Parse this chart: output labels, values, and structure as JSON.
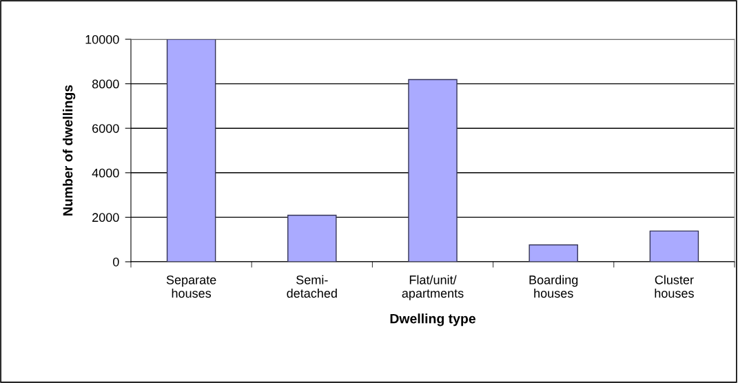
{
  "chart_data": {
    "type": "bar",
    "xlabel": "Dwelling type",
    "ylabel": "Number of dwellings",
    "categories": [
      "Separate\nhouses",
      "Semi-\ndetached",
      "Flat/unit/\napartments",
      "Boarding\nhouses",
      "Cluster\nhouses"
    ],
    "values": [
      10000,
      2090,
      8190,
      760,
      1380
    ],
    "color": "#aaaaff",
    "ylim": [
      0,
      10000
    ],
    "yticks": [
      0,
      2000,
      4000,
      6000,
      8000,
      10000
    ],
    "grid": "y",
    "legend": false
  }
}
